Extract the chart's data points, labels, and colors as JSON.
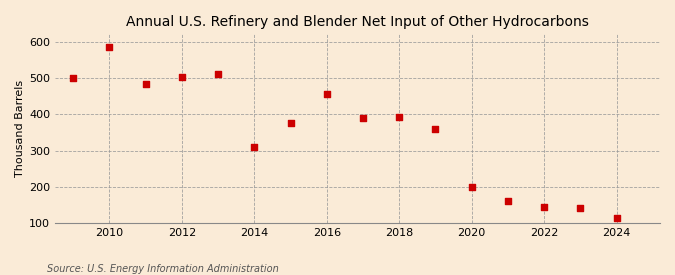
{
  "title": "Annual U.S. Refinery and Blender Net Input of Other Hydrocarbons",
  "ylabel": "Thousand Barrels",
  "source": "Source: U.S. Energy Information Administration",
  "background_color": "#faebd7",
  "years": [
    2009,
    2010,
    2011,
    2012,
    2013,
    2014,
    2015,
    2016,
    2017,
    2018,
    2019,
    2020,
    2021,
    2022,
    2023,
    2024
  ],
  "values": [
    500,
    585,
    483,
    502,
    510,
    310,
    375,
    455,
    390,
    393,
    360,
    200,
    160,
    145,
    143,
    113
  ],
  "marker_color": "#cc0000",
  "marker_size": 20,
  "ylim": [
    100,
    620
  ],
  "yticks": [
    100,
    200,
    300,
    400,
    500,
    600
  ],
  "xlim": [
    2008.5,
    2025.2
  ],
  "xticks": [
    2010,
    2012,
    2014,
    2016,
    2018,
    2020,
    2022,
    2024
  ],
  "grid_color": "#999999",
  "title_fontsize": 10,
  "label_fontsize": 8,
  "tick_fontsize": 8,
  "source_fontsize": 7
}
